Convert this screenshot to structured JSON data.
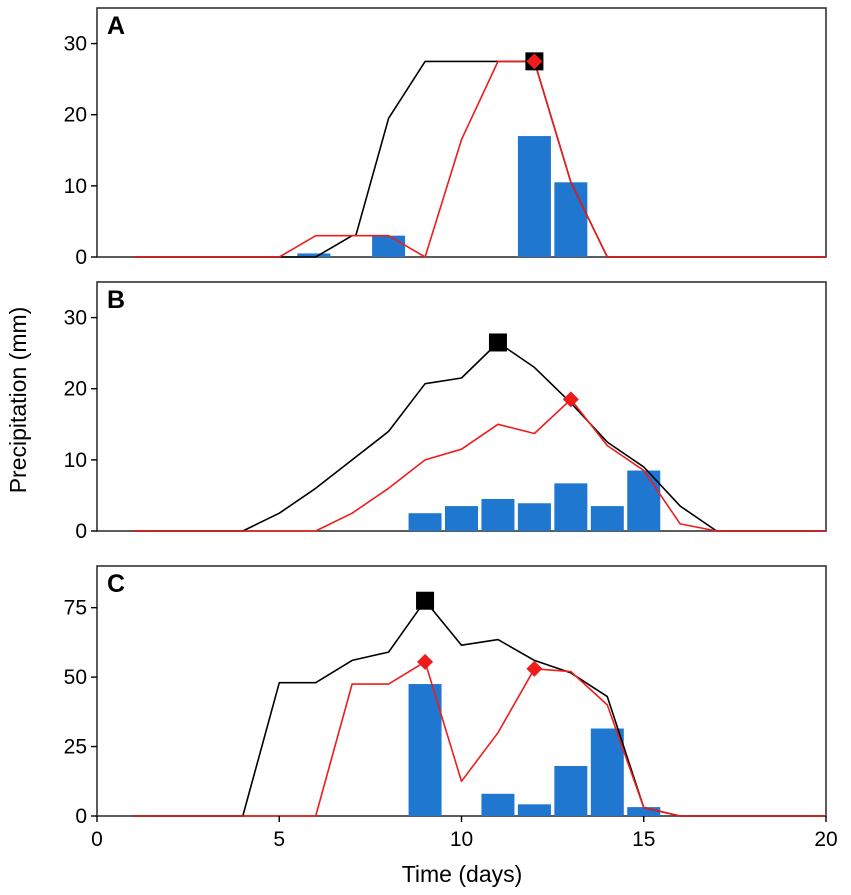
{
  "chart_data": {
    "type": "bar+line",
    "ylabel": "Precipitation (mm)",
    "xlabel": "Time (days)",
    "xlim": [
      0,
      20
    ],
    "xticks": [
      0,
      5,
      10,
      15,
      20
    ],
    "colors": {
      "bars": "#1f77d0",
      "black_line": "#000000",
      "red_line": "#ee1c1c",
      "frame": "#333333"
    },
    "panels": [
      {
        "label": "A",
        "ylim": [
          0,
          35
        ],
        "yticks": [
          0,
          10,
          20,
          30
        ],
        "bars": [
          {
            "x": 5.95,
            "value": 0.5
          },
          {
            "x": 8.0,
            "value": 3.0
          },
          {
            "x": 12.0,
            "value": 17.0
          },
          {
            "x": 13.0,
            "value": 10.5
          }
        ],
        "black_series": [
          [
            1,
            0
          ],
          [
            6,
            0
          ],
          [
            7,
            3
          ],
          [
            7.1,
            3
          ],
          [
            8,
            19.5
          ],
          [
            9,
            27.5
          ],
          [
            12,
            27.5
          ],
          [
            13,
            10.5
          ],
          [
            14,
            0
          ],
          [
            20,
            0
          ]
        ],
        "red_series": [
          [
            1,
            0
          ],
          [
            5,
            0
          ],
          [
            6,
            3
          ],
          [
            8,
            3
          ],
          [
            9,
            0
          ],
          [
            10,
            16.5
          ],
          [
            11,
            27.5
          ],
          [
            12,
            27.5
          ],
          [
            13,
            10.5
          ],
          [
            14,
            0
          ],
          [
            20,
            0
          ]
        ],
        "black_peak": {
          "x": 12,
          "y": 27.5
        },
        "red_peak": {
          "x": 12,
          "y": 27.5
        }
      },
      {
        "label": "B",
        "ylim": [
          0,
          35
        ],
        "yticks": [
          0,
          10,
          20,
          30
        ],
        "bars": [
          {
            "x": 9.0,
            "value": 2.5
          },
          {
            "x": 10.0,
            "value": 3.5
          },
          {
            "x": 11.0,
            "value": 4.5
          },
          {
            "x": 12.0,
            "value": 3.9
          },
          {
            "x": 13.0,
            "value": 6.7
          },
          {
            "x": 14.0,
            "value": 3.5
          },
          {
            "x": 15.0,
            "value": 8.5
          }
        ],
        "black_series": [
          [
            1,
            0
          ],
          [
            4,
            0
          ],
          [
            5,
            2.5
          ],
          [
            6,
            6
          ],
          [
            7,
            10
          ],
          [
            8,
            14
          ],
          [
            9,
            20.7
          ],
          [
            10,
            21.5
          ],
          [
            11,
            26.5
          ],
          [
            12,
            23
          ],
          [
            13,
            18
          ],
          [
            14,
            12.5
          ],
          [
            15,
            9
          ],
          [
            16,
            3.5
          ],
          [
            17,
            0
          ],
          [
            20,
            0
          ]
        ],
        "red_series": [
          [
            1,
            0
          ],
          [
            6,
            0
          ],
          [
            7,
            2.5
          ],
          [
            8,
            6
          ],
          [
            9,
            10
          ],
          [
            10,
            11.5
          ],
          [
            11,
            15
          ],
          [
            12,
            13.7
          ],
          [
            13,
            18.5
          ],
          [
            14,
            12
          ],
          [
            15,
            8.5
          ],
          [
            16,
            1
          ],
          [
            17,
            0
          ],
          [
            20,
            0
          ]
        ],
        "black_peak": {
          "x": 11,
          "y": 26.5
        },
        "red_peak": {
          "x": 13,
          "y": 18.5
        }
      },
      {
        "label": "C",
        "ylim": [
          0,
          90
        ],
        "yticks": [
          0,
          25,
          50,
          75
        ],
        "bars": [
          {
            "x": 9.0,
            "value": 47.5
          },
          {
            "x": 11.0,
            "value": 8.0
          },
          {
            "x": 12.0,
            "value": 4.2
          },
          {
            "x": 13.0,
            "value": 18.0
          },
          {
            "x": 14.0,
            "value": 31.5
          },
          {
            "x": 15.0,
            "value": 3.2
          }
        ],
        "black_series": [
          [
            1,
            0
          ],
          [
            4,
            0
          ],
          [
            5,
            48
          ],
          [
            6,
            48
          ],
          [
            7,
            56
          ],
          [
            8,
            59
          ],
          [
            9,
            77.5
          ],
          [
            10,
            61.5
          ],
          [
            11,
            63.5
          ],
          [
            12,
            56
          ],
          [
            13,
            51.5
          ],
          [
            14,
            43
          ],
          [
            15,
            3
          ],
          [
            16,
            0
          ],
          [
            20,
            0
          ]
        ],
        "red_series": [
          [
            1,
            0
          ],
          [
            6,
            0
          ],
          [
            7,
            47.5
          ],
          [
            8,
            47.5
          ],
          [
            9,
            55.5
          ],
          [
            10,
            12.5
          ],
          [
            11,
            30
          ],
          [
            12,
            53
          ],
          [
            13,
            52
          ],
          [
            14,
            40
          ],
          [
            15,
            3
          ],
          [
            16,
            0
          ],
          [
            20,
            0
          ]
        ],
        "black_peak": {
          "x": 9,
          "y": 77.5
        },
        "red_peak": {
          "x": 9,
          "y": 55.5
        },
        "red_peak_2": {
          "x": 12,
          "y": 53
        }
      }
    ]
  }
}
